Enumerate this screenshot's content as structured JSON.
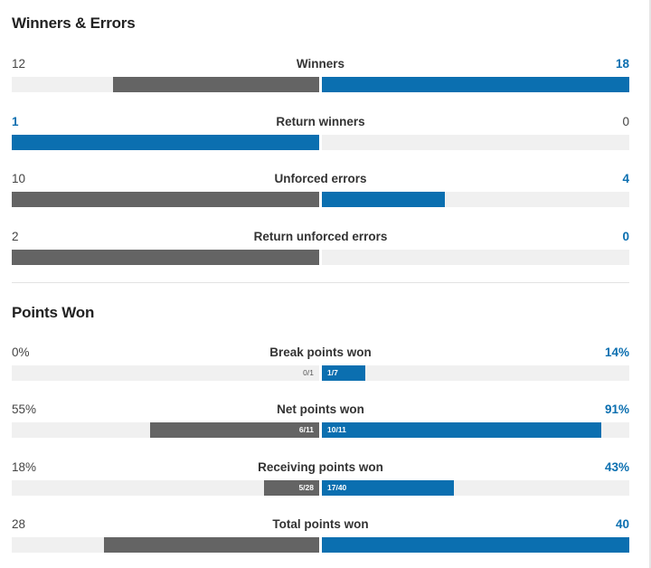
{
  "sections": [
    {
      "title": "Winners & Errors",
      "rows": [
        {
          "label": "Winners",
          "left": "12",
          "right": "18",
          "left_pct": 67,
          "right_pct": 100,
          "highlight": "right"
        },
        {
          "label": "Return winners",
          "left": "1",
          "right": "0",
          "left_pct": 100,
          "right_pct": 0,
          "highlight": "left"
        },
        {
          "label": "Unforced errors",
          "left": "10",
          "right": "4",
          "left_pct": 100,
          "right_pct": 40,
          "highlight": "right"
        },
        {
          "label": "Return unforced errors",
          "left": "2",
          "right": "0",
          "left_pct": 100,
          "right_pct": 0,
          "highlight": "right"
        }
      ]
    },
    {
      "title": "Points Won",
      "rows": [
        {
          "label": "Break points won",
          "left": "0%",
          "right": "14%",
          "left_pct": 0,
          "right_pct": 14,
          "left_frac": "0/1",
          "right_frac": "1/7",
          "highlight": "right"
        },
        {
          "label": "Net points won",
          "left": "55%",
          "right": "91%",
          "left_pct": 55,
          "right_pct": 91,
          "left_frac": "6/11",
          "right_frac": "10/11",
          "highlight": "right"
        },
        {
          "label": "Receiving points won",
          "left": "18%",
          "right": "43%",
          "left_pct": 18,
          "right_pct": 43,
          "left_frac": "5/28",
          "right_frac": "17/40",
          "highlight": "right"
        },
        {
          "label": "Total points won",
          "left": "28",
          "right": "40",
          "left_pct": 70,
          "right_pct": 100,
          "highlight": "right"
        }
      ]
    }
  ],
  "colors": {
    "player_left": "#646464",
    "player_right": "#0b6fb0",
    "track": "#f0f0f0",
    "highlight_text": "#0b6fb0"
  }
}
